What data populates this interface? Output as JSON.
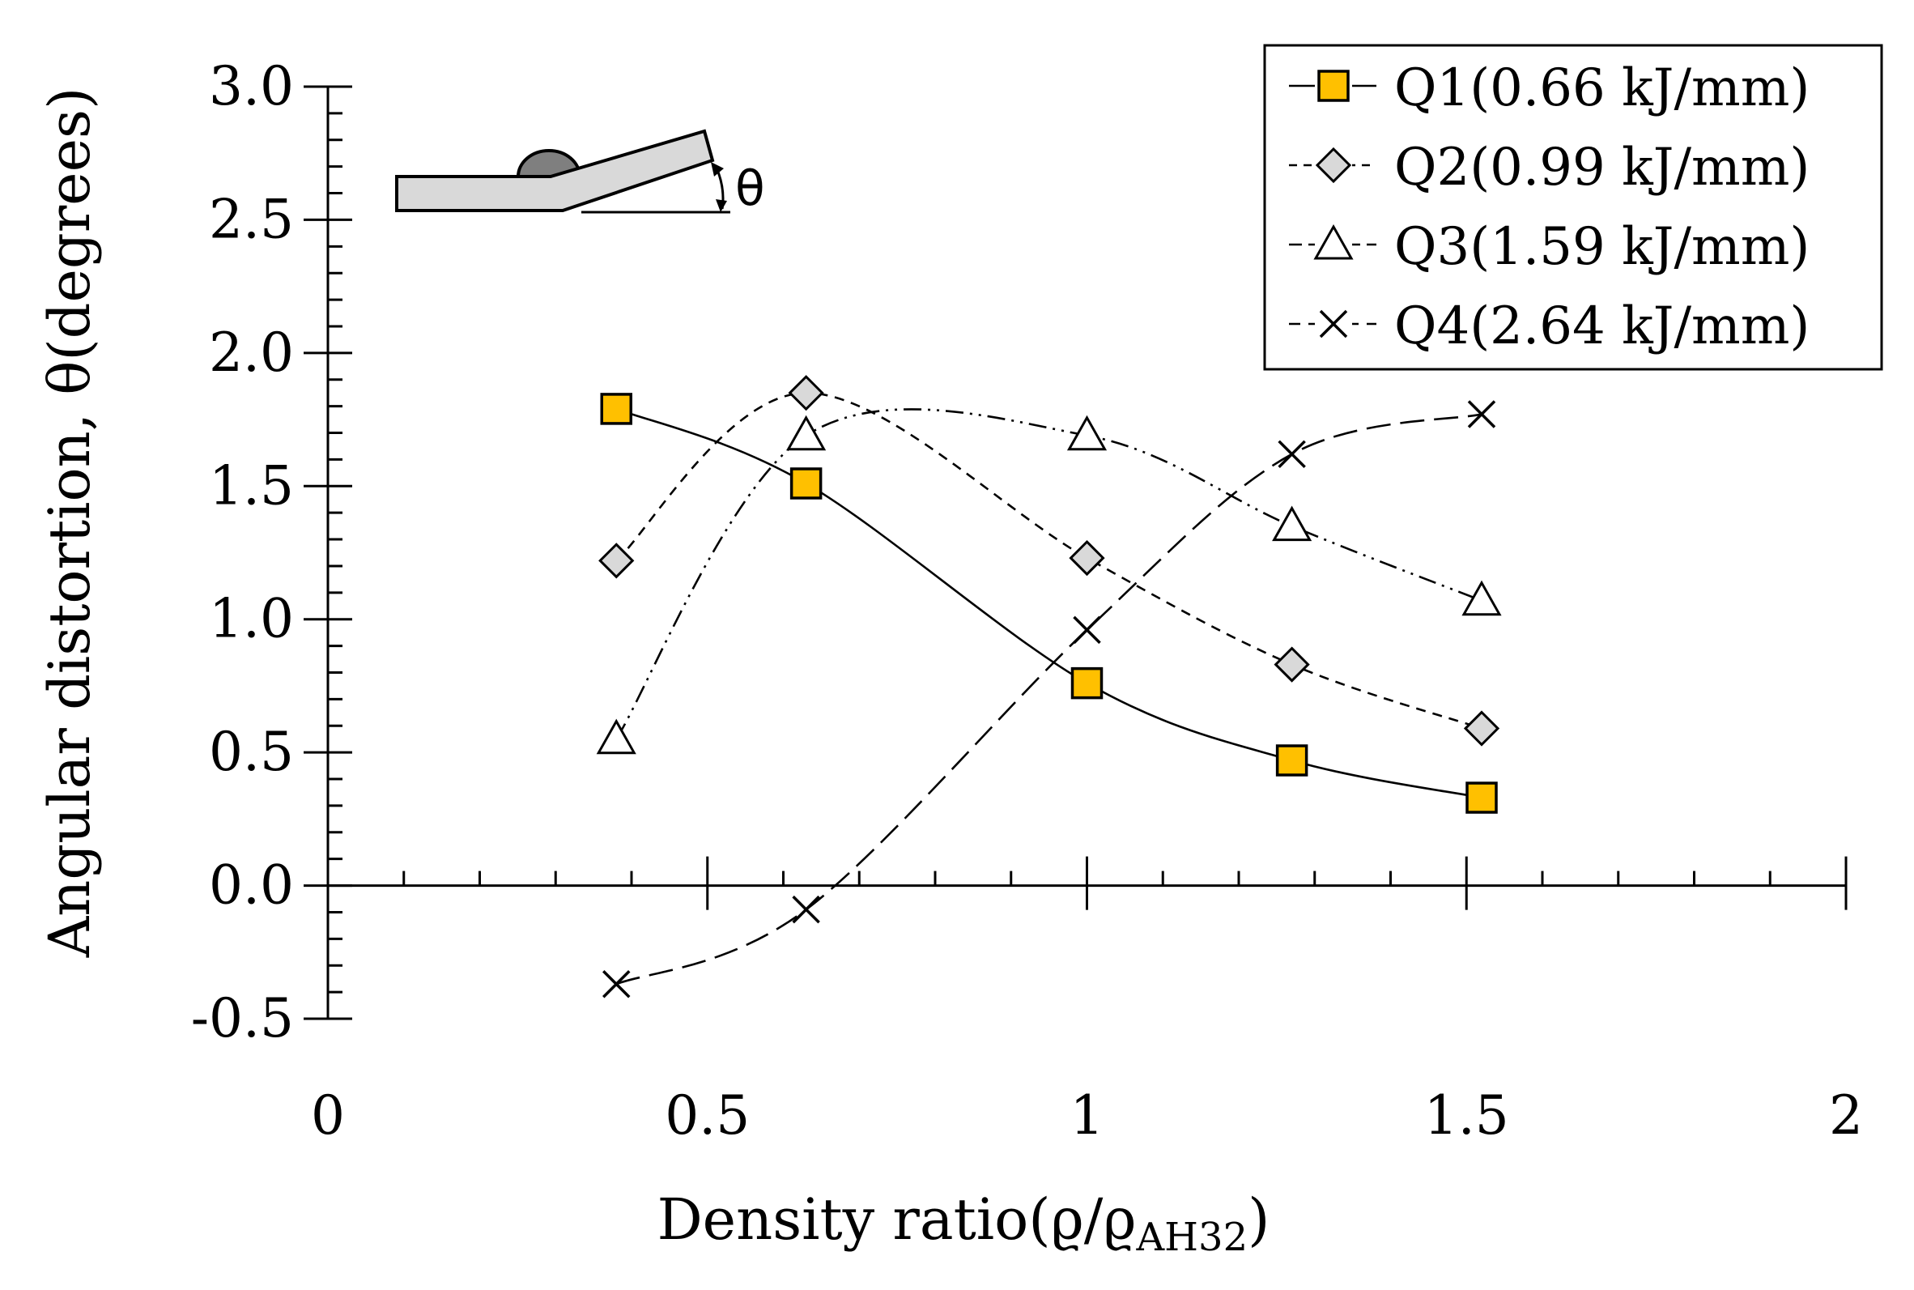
{
  "chart_data": {
    "type": "line",
    "title": "",
    "xlabel": "Density ratio(ϱ/ϱ",
    "xlabel_sub": "AH32",
    "xlabel_close": ")",
    "ylabel": "Angular distortion, θ(degrees)",
    "xlim": [
      0,
      2
    ],
    "ylim": [
      -0.5,
      3.0
    ],
    "x_ticks": [
      "0",
      "0.5",
      "1",
      "1.5",
      "2"
    ],
    "y_ticks": [
      "-0.5",
      "0.0",
      "0.5",
      "1.0",
      "1.5",
      "2.0",
      "2.5",
      "3.0"
    ],
    "x": [
      0.38,
      0.63,
      1.0,
      1.27,
      1.52
    ],
    "series": [
      {
        "name": "Q1(0.66 kJ/mm)",
        "marker": "square",
        "line": "solid",
        "values": [
          1.79,
          1.51,
          0.76,
          0.47,
          0.33
        ]
      },
      {
        "name": "Q2(0.99 kJ/mm)",
        "marker": "diamond",
        "line": "dashed",
        "values": [
          1.22,
          1.85,
          1.23,
          0.83,
          0.59
        ]
      },
      {
        "name": "Q3(1.59 kJ/mm)",
        "marker": "triangle",
        "line": "dash-dot-dot",
        "values": [
          0.55,
          1.69,
          1.69,
          1.35,
          1.07
        ]
      },
      {
        "name": "Q4(2.64 kJ/mm)",
        "marker": "x",
        "line": "long-dashed",
        "values": [
          -0.37,
          -0.09,
          0.96,
          1.62,
          1.77
        ]
      }
    ],
    "legend_position": "top-right",
    "inset_label": "θ",
    "colors": {
      "q1_fill": "#FFC000",
      "q2_fill": "#D9D9D9",
      "plate_fill": "#D9D9D9",
      "weld_fill": "#7F7F7F"
    }
  }
}
